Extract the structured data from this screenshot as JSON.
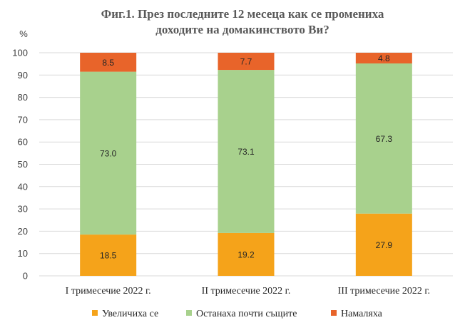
{
  "chart_data": {
    "type": "bar",
    "stacked": true,
    "title_lines": [
      "Фиг.1. През последните 12 месеца как се промениха",
      "доходите на домакинството Ви?"
    ],
    "ylabel": "%",
    "ylim": [
      0,
      100
    ],
    "yticks": [
      0,
      10,
      20,
      30,
      40,
      50,
      60,
      70,
      80,
      90,
      100
    ],
    "categories": [
      "I тримесечие 2022 г.",
      "II тримесечие 2022 г.",
      "III тримесечие 2022 г."
    ],
    "series": [
      {
        "name": "Увеличиха се",
        "values": [
          18.5,
          19.2,
          27.9
        ],
        "color": "#F5A31A"
      },
      {
        "name": "Останаха почти същите",
        "values": [
          73.0,
          73.1,
          67.3
        ],
        "color": "#A8D18D"
      },
      {
        "name": "Намаляха",
        "values": [
          8.5,
          7.7,
          4.8
        ],
        "color": "#E8642A"
      }
    ],
    "data_labels": [
      [
        "18.5",
        "19.2",
        "27.9"
      ],
      [
        "73.0",
        "73.1",
        "67.3"
      ],
      [
        "8.5",
        "7.7",
        "4.8"
      ]
    ],
    "grid": true,
    "legend_position": "bottom"
  }
}
